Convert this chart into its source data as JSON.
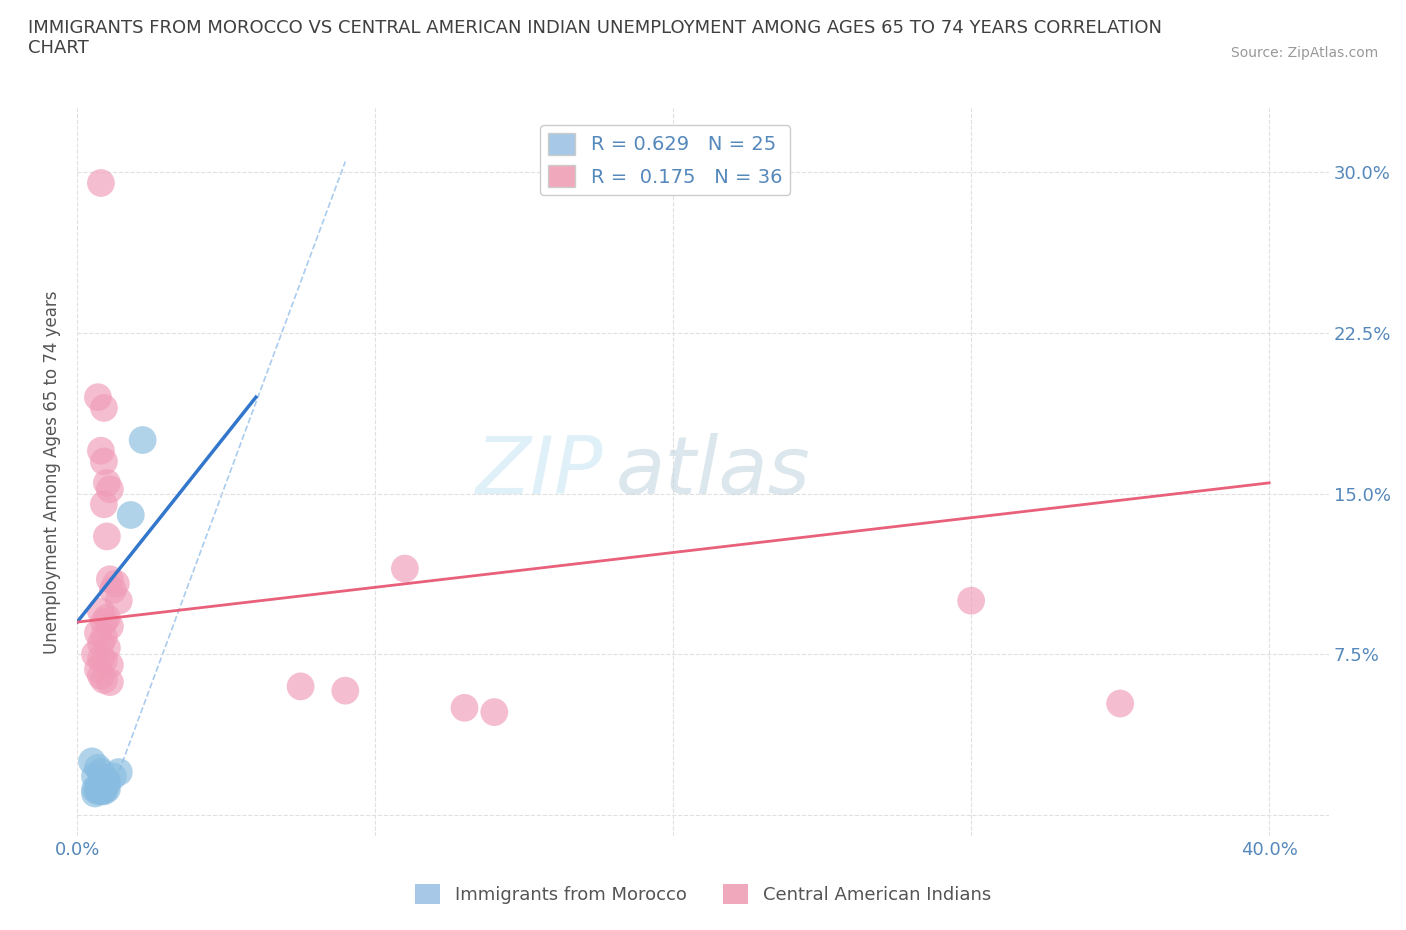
{
  "title": "IMMIGRANTS FROM MOROCCO VS CENTRAL AMERICAN INDIAN UNEMPLOYMENT AMONG AGES 65 TO 74 YEARS CORRELATION\nCHART",
  "source": "Source: ZipAtlas.com",
  "ylabel": "Unemployment Among Ages 65 to 74 years",
  "xlim": [
    0.0,
    0.42
  ],
  "ylim": [
    -0.01,
    0.33
  ],
  "xticks": [
    0.0,
    0.1,
    0.2,
    0.3,
    0.4
  ],
  "yticks": [
    0.0,
    0.075,
    0.15,
    0.225,
    0.3
  ],
  "xticklabels": [
    "0.0%",
    "",
    "",
    "",
    "40.0%"
  ],
  "yticklabels_right": [
    "",
    "7.5%",
    "15.0%",
    "22.5%",
    "30.0%"
  ],
  "watermark1": "ZIP",
  "watermark2": "atlas",
  "legend_entries": [
    {
      "label": "R = 0.629   N = 25",
      "color": "#a8c8e8"
    },
    {
      "label": "R =  0.175   N = 36",
      "color": "#f0a8bc"
    }
  ],
  "legend_bottom": [
    {
      "label": "Immigrants from Morocco",
      "color": "#a8c8e8"
    },
    {
      "label": "Central American Indians",
      "color": "#f0a8bc"
    }
  ],
  "morocco_color": "#88bce0",
  "cai_color": "#f09cb8",
  "morocco_scatter": [
    [
      0.005,
      0.025
    ],
    [
      0.007,
      0.022
    ],
    [
      0.008,
      0.02
    ],
    [
      0.006,
      0.018
    ],
    [
      0.009,
      0.017
    ],
    [
      0.01,
      0.016
    ],
    [
      0.008,
      0.015
    ],
    [
      0.009,
      0.014
    ],
    [
      0.01,
      0.014
    ],
    [
      0.007,
      0.013
    ],
    [
      0.008,
      0.013
    ],
    [
      0.009,
      0.013
    ],
    [
      0.006,
      0.012
    ],
    [
      0.007,
      0.012
    ],
    [
      0.008,
      0.012
    ],
    [
      0.009,
      0.012
    ],
    [
      0.01,
      0.012
    ],
    [
      0.007,
      0.011
    ],
    [
      0.008,
      0.011
    ],
    [
      0.009,
      0.011
    ],
    [
      0.006,
      0.01
    ],
    [
      0.012,
      0.018
    ],
    [
      0.014,
      0.02
    ],
    [
      0.018,
      0.14
    ],
    [
      0.022,
      0.175
    ]
  ],
  "cai_scatter": [
    [
      0.008,
      0.295
    ],
    [
      0.007,
      0.195
    ],
    [
      0.009,
      0.19
    ],
    [
      0.008,
      0.17
    ],
    [
      0.009,
      0.165
    ],
    [
      0.01,
      0.155
    ],
    [
      0.011,
      0.152
    ],
    [
      0.009,
      0.145
    ],
    [
      0.01,
      0.13
    ],
    [
      0.011,
      0.11
    ],
    [
      0.013,
      0.108
    ],
    [
      0.012,
      0.105
    ],
    [
      0.014,
      0.1
    ],
    [
      0.008,
      0.095
    ],
    [
      0.01,
      0.092
    ],
    [
      0.009,
      0.09
    ],
    [
      0.011,
      0.088
    ],
    [
      0.007,
      0.085
    ],
    [
      0.009,
      0.083
    ],
    [
      0.008,
      0.08
    ],
    [
      0.01,
      0.078
    ],
    [
      0.006,
      0.075
    ],
    [
      0.008,
      0.073
    ],
    [
      0.009,
      0.072
    ],
    [
      0.011,
      0.07
    ],
    [
      0.007,
      0.068
    ],
    [
      0.008,
      0.065
    ],
    [
      0.009,
      0.063
    ],
    [
      0.011,
      0.062
    ],
    [
      0.11,
      0.115
    ],
    [
      0.075,
      0.06
    ],
    [
      0.09,
      0.058
    ],
    [
      0.3,
      0.1
    ],
    [
      0.35,
      0.052
    ],
    [
      0.13,
      0.05
    ],
    [
      0.14,
      0.048
    ]
  ],
  "morocco_line": [
    [
      0.0,
      0.09
    ],
    [
      0.06,
      0.195
    ]
  ],
  "cai_line": [
    [
      0.0,
      0.09
    ],
    [
      0.4,
      0.155
    ]
  ],
  "dashed_line": [
    [
      0.01,
      0.005
    ],
    [
      0.09,
      0.305
    ]
  ],
  "background_color": "#ffffff",
  "grid_color": "#e0e0e0",
  "title_color": "#404040",
  "axis_label_color": "#555555",
  "tick_color": "#5588bb",
  "morocco_line_color": "#3377cc",
  "cai_line_color": "#e8607a",
  "dashed_line_color": "#aaccee"
}
